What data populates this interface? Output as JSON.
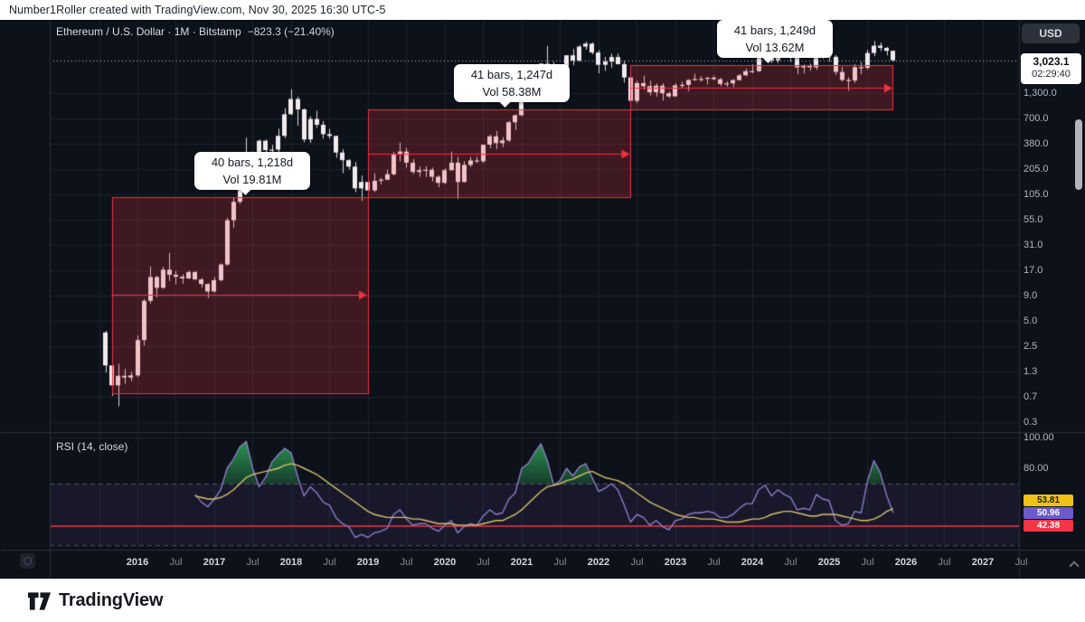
{
  "banner": {
    "text": "Number1Roller created with TradingView.com, Nov 30, 2025 16:30 UTC-5"
  },
  "legend": {
    "title": "Ethereum / U.S. Dollar · 1M · Bitstamp",
    "change": "−823.3 (−21.40%)"
  },
  "price_axis": {
    "currency_label": "USD",
    "current_price": "3,023.1",
    "countdown": "02:29:40",
    "ticks": [
      "1,300.0",
      "700.0",
      "380.0",
      "205.0",
      "105.0",
      "55.0",
      "31.0",
      "17.0",
      "9.0",
      "5.0",
      "2.5",
      "1.3",
      "0.7",
      "0.3"
    ]
  },
  "rsi": {
    "label": "RSI (14, close)",
    "axis_ticks": [
      "100.00",
      "80.00"
    ],
    "badges": [
      {
        "value": "53.81",
        "bg": "#f2c115",
        "fg": "#1d1d1d"
      },
      {
        "value": "50.96",
        "bg": "#6a5acd",
        "fg": "#ffffff"
      },
      {
        "value": "42.38",
        "bg": "#f23645",
        "fg": "#ffffff"
      }
    ]
  },
  "time_axis": {
    "labels": [
      {
        "text": "2016",
        "month_index": 5,
        "minor": false
      },
      {
        "text": "Jul",
        "month_index": 11,
        "minor": true
      },
      {
        "text": "2017",
        "month_index": 17,
        "minor": false
      },
      {
        "text": "Jul",
        "month_index": 23,
        "minor": true
      },
      {
        "text": "2018",
        "month_index": 29,
        "minor": false
      },
      {
        "text": "Jul",
        "month_index": 35,
        "minor": true
      },
      {
        "text": "2019",
        "month_index": 41,
        "minor": false
      },
      {
        "text": "Jul",
        "month_index": 47,
        "minor": true
      },
      {
        "text": "2020",
        "month_index": 53,
        "minor": false
      },
      {
        "text": "Jul",
        "month_index": 59,
        "minor": true
      },
      {
        "text": "2021",
        "month_index": 65,
        "minor": false
      },
      {
        "text": "Jul",
        "month_index": 71,
        "minor": true
      },
      {
        "text": "2022",
        "month_index": 77,
        "minor": false
      },
      {
        "text": "Jul",
        "month_index": 83,
        "minor": true
      },
      {
        "text": "2023",
        "month_index": 89,
        "minor": false
      },
      {
        "text": "Jul",
        "month_index": 95,
        "minor": true
      },
      {
        "text": "2024",
        "month_index": 101,
        "minor": false
      },
      {
        "text": "Jul",
        "month_index": 107,
        "minor": true
      },
      {
        "text": "2025",
        "month_index": 113,
        "minor": false
      },
      {
        "text": "Jul",
        "month_index": 119,
        "minor": true
      },
      {
        "text": "2026",
        "month_index": 125,
        "minor": false
      },
      {
        "text": "Jul",
        "month_index": 131,
        "minor": true
      },
      {
        "text": "2027",
        "month_index": 137,
        "minor": false
      },
      {
        "text": "Jul",
        "month_index": 143,
        "minor": true
      }
    ]
  },
  "footer": {
    "brand": "TradingView"
  },
  "colors": {
    "background": "#0d1119",
    "grid": "rgba(44,52,70,0.5)",
    "separator": "#2a2f3b",
    "candle": "#f1ebee",
    "box_fill": "rgba(242,54,69,0.22)",
    "box_border": "#ef323f",
    "price_line": "rgba(240,241,245,0.8)",
    "rsi_line": "#8c7cc9",
    "rsi_ma_line": "#d6c06d",
    "rsi_band_fill": "rgba(126,87,194,0.10)",
    "rsi_band_line": "rgba(135,139,150,0.55)",
    "rsi_level_red": "#f23645",
    "overbought_green": "rgba(44,158,84,0.9)"
  },
  "chart_data": {
    "type": "candlestick",
    "title": "Ethereum / U.S. Dollar, 1M, Bitstamp",
    "price_scale": "log",
    "start_month": "2015-08",
    "interval": "1M",
    "last_close": 3023.1,
    "last_change": -823.3,
    "last_change_pct": -21.4,
    "price_ticks": [
      1300,
      700,
      380,
      205,
      105,
      55,
      31,
      17,
      9,
      5,
      2.5,
      1.3,
      0.7,
      0.3
    ],
    "candles": [
      [
        2.8,
        2.9,
        1.0,
        1.2
      ],
      [
        1.2,
        1.4,
        0.55,
        0.72
      ],
      [
        0.72,
        1.25,
        0.42,
        0.92
      ],
      [
        0.92,
        1.1,
        0.75,
        0.88
      ],
      [
        0.88,
        1.02,
        0.8,
        0.93
      ],
      [
        0.93,
        2.6,
        0.89,
        2.3
      ],
      [
        2.3,
        6.6,
        2.0,
        6.3
      ],
      [
        6.3,
        15.2,
        5.9,
        11.6
      ],
      [
        11.6,
        12.0,
        6.9,
        8.8
      ],
      [
        8.8,
        15.0,
        8.6,
        14.0
      ],
      [
        14.0,
        21.5,
        10.5,
        12.3
      ],
      [
        12.3,
        13.5,
        9.7,
        11.7
      ],
      [
        11.7,
        12.5,
        9.8,
        11.2
      ],
      [
        11.2,
        13.6,
        11.0,
        13.2
      ],
      [
        13.2,
        13.4,
        10.8,
        10.9
      ],
      [
        10.9,
        11.3,
        8.9,
        9.7
      ],
      [
        9.7,
        9.9,
        6.8,
        8.0
      ],
      [
        8.0,
        11.6,
        7.8,
        10.7
      ],
      [
        10.7,
        16.4,
        10.4,
        16.0
      ],
      [
        16.0,
        53.0,
        15.5,
        49.8
      ],
      [
        49.8,
        90.0,
        41.0,
        79.9
      ],
      [
        79.9,
        233.0,
        76.0,
        228.0
      ],
      [
        228.0,
        415.0,
        201.0,
        280.0
      ],
      [
        280.0,
        290.0,
        133.0,
        203.0
      ],
      [
        203.0,
        395.0,
        200.0,
        383.0
      ],
      [
        383.0,
        395.0,
        199.0,
        301.0
      ],
      [
        301.0,
        345.0,
        272.0,
        305.0
      ],
      [
        305.0,
        522.0,
        280.0,
        434.0
      ],
      [
        434.0,
        881.0,
        410.0,
        756.0
      ],
      [
        756.0,
        1432.0,
        742.0,
        1118.0
      ],
      [
        1118.0,
        1190.0,
        565.0,
        856.0
      ],
      [
        856.0,
        880.0,
        368.0,
        396.0
      ],
      [
        396.0,
        715.0,
        362.0,
        669.0
      ],
      [
        669.0,
        830.0,
        533.0,
        577.0
      ],
      [
        577.0,
        634.0,
        404.0,
        454.0
      ],
      [
        454.0,
        520.0,
        403.0,
        433.0
      ],
      [
        433.0,
        437.0,
        247.0,
        283.0
      ],
      [
        283.0,
        308.0,
        167.0,
        233.0
      ],
      [
        233.0,
        238.0,
        183.0,
        197.0
      ],
      [
        197.0,
        222.0,
        102.0,
        113.0
      ],
      [
        113.0,
        157.0,
        82.0,
        133.0
      ],
      [
        133.0,
        161.0,
        102.0,
        107.0
      ],
      [
        107.0,
        166.0,
        103.0,
        137.0
      ],
      [
        137.0,
        148.0,
        125.0,
        141.0
      ],
      [
        141.0,
        182.0,
        140.0,
        162.0
      ],
      [
        162.0,
        288.0,
        157.0,
        268.0
      ],
      [
        268.0,
        365.0,
        225.0,
        290.0
      ],
      [
        290.0,
        319.0,
        192.0,
        218.0
      ],
      [
        218.0,
        239.0,
        163.0,
        172.0
      ],
      [
        172.0,
        198.0,
        152.0,
        180.0
      ],
      [
        180.0,
        199.0,
        151.0,
        182.0
      ],
      [
        182.0,
        192.0,
        135.0,
        152.0
      ],
      [
        152.0,
        158.0,
        116.0,
        130.0
      ],
      [
        130.0,
        188.0,
        126.0,
        180.0
      ],
      [
        180.0,
        289.0,
        179.0,
        218.0
      ],
      [
        218.0,
        253.0,
        86.0,
        133.0
      ],
      [
        133.0,
        227.0,
        131.0,
        206.0
      ],
      [
        206.0,
        254.0,
        196.0,
        231.0
      ],
      [
        231.0,
        254.0,
        216.0,
        226.0
      ],
      [
        226.0,
        346.0,
        216.0,
        346.0
      ],
      [
        346.0,
        447.0,
        317.0,
        429.0
      ],
      [
        429.0,
        490.0,
        308.0,
        360.0
      ],
      [
        360.0,
        420.0,
        325.0,
        386.0
      ],
      [
        386.0,
        635.0,
        370.0,
        615.0
      ],
      [
        615.0,
        756.0,
        505.0,
        737.0
      ],
      [
        737.0,
        1477.0,
        716.0,
        1314.0
      ],
      [
        1314.0,
        2041.0,
        1271.0,
        1418.0
      ],
      [
        1418.0,
        1947.0,
        1293.0,
        1919.0
      ],
      [
        1919.0,
        2798.0,
        1914.0,
        2773.0
      ],
      [
        2773.0,
        4372.0,
        1728.0,
        2706.0
      ],
      [
        2706.0,
        2891.0,
        1700.0,
        2275.0
      ],
      [
        2275.0,
        2546.0,
        1718.0,
        2530.0
      ],
      [
        2530.0,
        3442.0,
        2452.0,
        3430.0
      ],
      [
        3430.0,
        4027.0,
        2652.0,
        3001.0
      ],
      [
        3001.0,
        4460.0,
        2917.0,
        4290.0
      ],
      [
        4290.0,
        4868.0,
        3959.0,
        4631.0
      ],
      [
        4631.0,
        4780.0,
        3504.0,
        3683.0
      ],
      [
        3683.0,
        3916.0,
        2160.0,
        2688.0
      ],
      [
        2688.0,
        3284.0,
        2300.0,
        2920.0
      ],
      [
        2920.0,
        3582.0,
        2492.0,
        3283.0
      ],
      [
        3283.0,
        3583.0,
        2727.0,
        2730.0
      ],
      [
        2730.0,
        2962.0,
        1703.0,
        1942.0
      ],
      [
        1942.0,
        1953.0,
        881.0,
        1067.0
      ],
      [
        1067.0,
        1786.0,
        1007.0,
        1681.0
      ],
      [
        1681.0,
        2031.0,
        1422.0,
        1554.0
      ],
      [
        1554.0,
        1789.0,
        1220.0,
        1328.0
      ],
      [
        1328.0,
        1663.0,
        1190.0,
        1573.0
      ],
      [
        1573.0,
        1680.0,
        1073.0,
        1294.0
      ],
      [
        1294.0,
        1350.0,
        1150.0,
        1196.0
      ],
      [
        1196.0,
        1674.0,
        1190.0,
        1586.0
      ],
      [
        1586.0,
        1743.0,
        1461.0,
        1606.0
      ],
      [
        1606.0,
        1856.0,
        1368.0,
        1821.0
      ],
      [
        1821.0,
        2141.0,
        1780.0,
        1870.0
      ],
      [
        1870.0,
        2018.0,
        1744.0,
        1873.0
      ],
      [
        1873.0,
        1946.0,
        1626.0,
        1933.0
      ],
      [
        1933.0,
        2029.0,
        1825.0,
        1855.0
      ],
      [
        1855.0,
        1925.0,
        1550.0,
        1645.0
      ],
      [
        1645.0,
        1753.0,
        1531.0,
        1671.0
      ],
      [
        1671.0,
        1865.0,
        1519.0,
        1815.0
      ],
      [
        1815.0,
        2135.0,
        1793.0,
        2051.0
      ],
      [
        2051.0,
        2445.0,
        2004.0,
        2282.0
      ],
      [
        2282.0,
        2717.0,
        2166.0,
        2283.0
      ],
      [
        2283.0,
        3488.0,
        2235.0,
        3386.0
      ],
      [
        3386.0,
        4093.0,
        2982.0,
        3647.0
      ],
      [
        3647.0,
        3728.0,
        2813.0,
        3012.0
      ],
      [
        3012.0,
        3977.0,
        2817.0,
        3762.0
      ],
      [
        3762.0,
        3974.0,
        3241.0,
        3438.0
      ],
      [
        3438.0,
        3563.0,
        2909.0,
        3232.0
      ],
      [
        3232.0,
        3284.0,
        2111.0,
        2513.0
      ],
      [
        2513.0,
        2717.0,
        2150.0,
        2602.0
      ],
      [
        2602.0,
        2768.0,
        2306.0,
        2518.0
      ],
      [
        2518.0,
        3733.0,
        2357.0,
        3703.0
      ],
      [
        3703.0,
        4106.0,
        3101.0,
        3336.0
      ],
      [
        3336.0,
        3742.0,
        2924.0,
        3300.0
      ],
      [
        3300.0,
        3439.0,
        2076.0,
        2237.0
      ],
      [
        2237.0,
        2541.0,
        1754.0,
        1822.0
      ],
      [
        1822.0,
        1955.0,
        1385.0,
        1794.0
      ],
      [
        1794.0,
        2738.0,
        1689.0,
        2529.0
      ],
      [
        2529.0,
        2879.0,
        2111.0,
        2486.0
      ],
      [
        2486.0,
        3940.0,
        2380.0,
        3640.0
      ],
      [
        3640.0,
        4955.0,
        3355.0,
        4390.0
      ],
      [
        4390.0,
        4770.0,
        3830.0,
        4150.0
      ],
      [
        4150.0,
        4250.0,
        3430.0,
        3846.4
      ],
      [
        3846.4,
        3900.0,
        2950.0,
        3023.1
      ]
    ],
    "measurements": [
      {
        "label_line1": "40 bars, 1,218d",
        "label_line2": "Vol 19.81M",
        "start_index": 1,
        "end_index": 41,
        "price_low": 0.59,
        "price_high": 90
      },
      {
        "label_line1": "41 bars, 1,247d",
        "label_line2": "Vol 58.38M",
        "start_index": 41,
        "end_index": 82,
        "price_low": 90,
        "price_high": 850
      },
      {
        "label_line1": "41 bars, 1,249d",
        "label_line2": "Vol 13.62M",
        "start_index": 82,
        "end_index": 123,
        "price_low": 850,
        "price_high": 2665
      }
    ],
    "rsi": {
      "start_index": 14,
      "upper_band": 70,
      "lower_band": 30,
      "red_level": 42.38,
      "values": [
        63,
        58,
        55,
        60,
        66,
        80,
        86,
        94,
        97.5,
        80,
        68,
        74,
        84,
        89,
        93,
        90,
        75,
        62,
        68,
        64,
        58,
        56,
        48,
        44,
        42,
        35,
        37,
        35,
        38,
        39,
        41,
        50,
        53,
        47,
        43,
        44,
        44,
        41,
        39,
        43,
        46,
        38,
        42,
        44,
        43,
        49,
        53,
        50,
        51,
        60,
        64,
        80,
        83,
        90,
        96,
        85,
        69,
        72,
        80,
        75,
        81,
        83,
        74,
        65,
        67,
        70,
        66,
        56,
        45,
        50,
        48,
        43,
        46,
        42,
        40,
        46,
        47,
        50,
        51,
        51,
        52,
        51,
        48,
        48,
        50,
        54,
        57,
        57,
        66,
        69,
        62,
        66,
        63,
        61,
        53,
        54,
        53,
        63,
        60,
        59,
        46,
        43,
        44,
        52,
        51,
        72,
        85,
        77,
        62,
        50.96
      ],
      "ma_values": [
        62,
        61,
        60,
        60,
        61,
        63,
        66,
        70,
        74,
        76,
        77,
        78,
        79,
        80,
        82,
        83,
        82,
        80,
        78,
        76,
        73,
        70,
        67,
        64,
        61,
        58,
        55,
        52,
        50,
        49,
        48,
        48,
        48,
        48,
        47,
        47,
        46,
        45,
        44,
        44,
        44,
        43,
        43,
        43,
        43,
        44,
        45,
        46,
        46,
        48,
        50,
        53,
        57,
        61,
        65,
        68,
        69,
        70,
        72,
        73,
        75,
        77,
        78,
        76,
        74,
        73,
        72,
        70,
        67,
        64,
        61,
        58,
        56,
        54,
        52,
        50,
        49,
        48,
        48,
        47,
        47,
        47,
        46,
        45,
        45,
        45,
        46,
        47,
        47,
        48,
        50,
        51,
        52,
        52,
        51,
        50,
        49,
        49,
        50,
        50,
        50,
        49,
        48,
        47,
        46,
        46,
        47,
        49,
        52,
        53.81
      ]
    }
  }
}
